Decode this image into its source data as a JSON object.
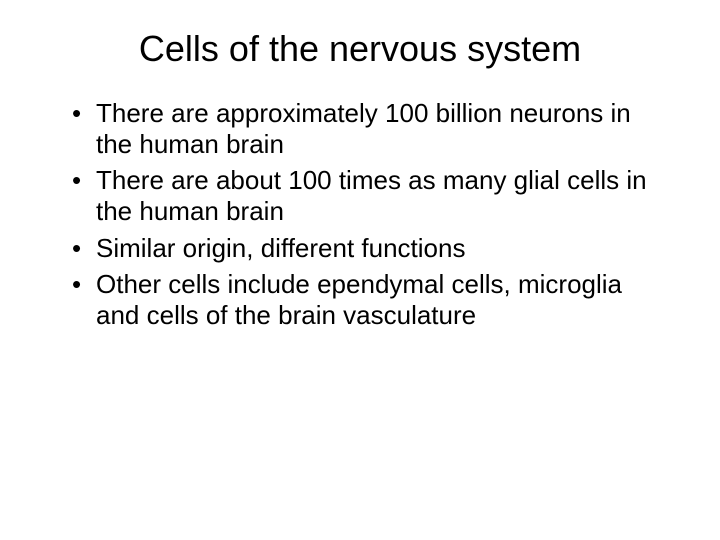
{
  "slide": {
    "title": "Cells of the nervous system",
    "bullets": [
      "There are approximately 100 billion neurons in the human brain",
      "There are about 100 times as many glial cells in the human brain",
      "Similar origin, different functions",
      "Other cells include ependymal cells, microglia and cells of the brain vasculature"
    ],
    "background_color": "#ffffff",
    "text_color": "#000000",
    "title_fontsize": 36,
    "body_fontsize": 26,
    "font_family": "Arial"
  }
}
